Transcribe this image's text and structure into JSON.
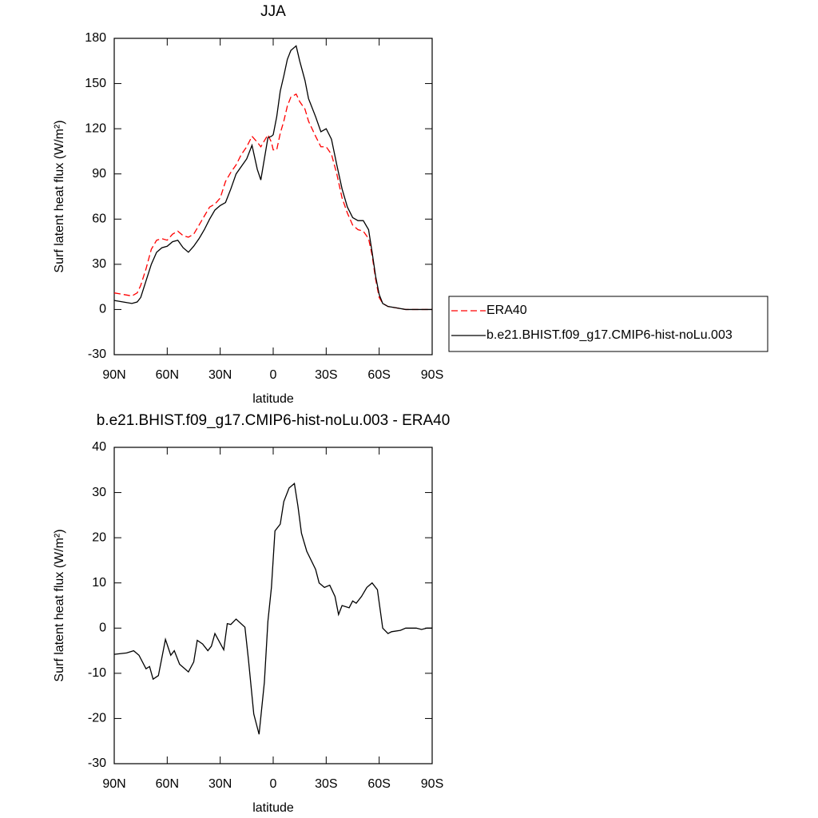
{
  "chart_data": [
    {
      "type": "line",
      "title": "JJA",
      "x_label": "latitude",
      "y_label": "Surf latent heat flux (W/m²)",
      "x": [
        90,
        85,
        80,
        77,
        75,
        72,
        69,
        66,
        63,
        60,
        57,
        54,
        51,
        48,
        45,
        42,
        39,
        36,
        33,
        30,
        27,
        24,
        21,
        18,
        15,
        12,
        9,
        7,
        5,
        3,
        1,
        0,
        -2,
        -4,
        -6,
        -8,
        -10,
        -13,
        -15,
        -18,
        -20,
        -24,
        -27,
        -30,
        -33,
        -36,
        -39,
        -42,
        -45,
        -48,
        -51,
        -54,
        -56,
        -58,
        -60,
        -62,
        -65,
        -70,
        -75,
        -80,
        -85,
        -90
      ],
      "series": [
        {
          "name": "ERA40",
          "color": "#ff0000",
          "dash": "dashed",
          "values": [
            11,
            10,
            9,
            11,
            16,
            27,
            40,
            46,
            47,
            46,
            50,
            52,
            49,
            48,
            50,
            56,
            62,
            68,
            70,
            74,
            85,
            91,
            96,
            103,
            108,
            115,
            111,
            108,
            112,
            116,
            111,
            106,
            106,
            117,
            125,
            135,
            141,
            143,
            138,
            133,
            125,
            115,
            108,
            108,
            103,
            90,
            74,
            64,
            56,
            53,
            52,
            47,
            36,
            20,
            8,
            4,
            2,
            1,
            0,
            0,
            0,
            0
          ]
        },
        {
          "name": "b.e21.BHIST.f09_g17.CMIP6-hist-noLu.003",
          "color": "#000000",
          "dash": "solid",
          "values": [
            6,
            5,
            4,
            5,
            8,
            19,
            30,
            38,
            41,
            42,
            45,
            46,
            41,
            38,
            42,
            47,
            53,
            60,
            66,
            69,
            71,
            80,
            90,
            95,
            100,
            109,
            93,
            86,
            100,
            114,
            115,
            116,
            128,
            145,
            155,
            166,
            172,
            175,
            165,
            152,
            140,
            128,
            118,
            120,
            113,
            96,
            80,
            68,
            61,
            59,
            59,
            53,
            38,
            22,
            10,
            4,
            2,
            1,
            0,
            0,
            0,
            0
          ]
        }
      ],
      "xlim": [
        90,
        -90
      ],
      "xticks": [
        {
          "value": 90,
          "label": "90N"
        },
        {
          "value": 60,
          "label": "60N"
        },
        {
          "value": 30,
          "label": "30N"
        },
        0,
        {
          "value": -30,
          "label": "30S"
        },
        {
          "value": -60,
          "label": "60S"
        },
        {
          "value": -90,
          "label": "90S"
        }
      ],
      "ylim": [
        -30,
        180
      ],
      "yticks": [
        -30,
        0,
        30,
        60,
        90,
        120,
        150,
        180
      ],
      "legend_position": "right"
    },
    {
      "type": "line",
      "title": "b.e21.BHIST.f09_g17.CMIP6-hist-noLu.003 - ERA40",
      "x_label": "latitude",
      "y_label": "Surf latent heat flux (W/m²)",
      "x": [
        90,
        83,
        79,
        76,
        72,
        70,
        68,
        65,
        61,
        58,
        56,
        53,
        48,
        45,
        43,
        40,
        37,
        35,
        33,
        28,
        26,
        24,
        21,
        16,
        14,
        11,
        8,
        5,
        3,
        1,
        -1,
        -4,
        -6,
        -9,
        -12,
        -14,
        -16,
        -19,
        -24,
        -26,
        -29,
        -32,
        -35,
        -37,
        -39,
        -43,
        -45,
        -47,
        -50,
        -53,
        -56,
        -59,
        -62,
        -65,
        -67,
        -72,
        -75,
        -81,
        -84,
        -87,
        -90
      ],
      "color": "#000000",
      "values": [
        -5.8,
        -5.5,
        -5,
        -6,
        -9,
        -8.5,
        -11.3,
        -10.5,
        -2.5,
        -6,
        -5,
        -8,
        -9.7,
        -7.5,
        -2.7,
        -3.5,
        -5,
        -4,
        -1.2,
        -4.8,
        1,
        0.8,
        2,
        0.2,
        -7,
        -19,
        -23.5,
        -12,
        1.5,
        9,
        21.5,
        23,
        28,
        31,
        32,
        27,
        21,
        17,
        13,
        10,
        9,
        9.5,
        7,
        3,
        5,
        4.5,
        6,
        5.5,
        7,
        9,
        10,
        8.5,
        0,
        -1.2,
        -0.8,
        -0.5,
        0,
        0,
        -0.3,
        0,
        0
      ],
      "xlim": [
        90,
        -90
      ],
      "xticks": [
        {
          "value": 90,
          "label": "90N"
        },
        {
          "value": 60,
          "label": "60N"
        },
        {
          "value": 30,
          "label": "30N"
        },
        0,
        {
          "value": -30,
          "label": "30S"
        },
        {
          "value": -60,
          "label": "60S"
        },
        {
          "value": -90,
          "label": "90S"
        }
      ],
      "ylim": [
        -30,
        40
      ],
      "yticks": [
        -30,
        -20,
        -10,
        0,
        10,
        20,
        30,
        40
      ]
    }
  ]
}
